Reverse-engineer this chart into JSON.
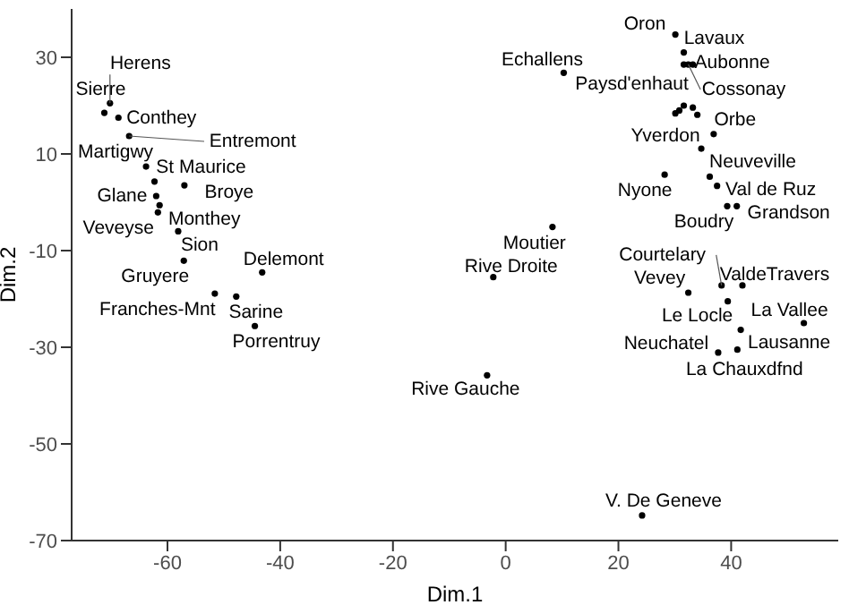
{
  "chart_data": {
    "type": "scatter",
    "xlabel": "Dim.1",
    "ylabel": "Dim.2",
    "xlim": [
      -77,
      59
    ],
    "xticks": [
      -60,
      -40,
      -20,
      0,
      20,
      40
    ],
    "ylim": [
      -70,
      40
    ],
    "yticks": [
      -70,
      -50,
      -30,
      -10,
      10,
      30
    ],
    "grid": false,
    "marker": "circle",
    "series": [
      {
        "color": "#000000",
        "x": [
          -70.2,
          -71.2,
          -68.7,
          -66.8,
          -63.8,
          -62.3,
          -57.0,
          -62.0,
          -61.4,
          -61.7,
          -58.1,
          -57.1,
          -43.2,
          -51.6,
          -47.8,
          -44.5,
          30.1,
          31.6,
          31.6,
          32.4,
          33.2,
          10.3,
          30.1,
          30.8,
          31.6,
          33.2,
          34.0,
          36.9,
          34.7,
          36.2,
          28.2,
          37.5,
          39.3,
          41.0,
          8.3,
          -2.2,
          38.3,
          42.0,
          32.4,
          39.4,
          52.9,
          41.7,
          37.7,
          41.1,
          -3.3,
          24.2
        ],
        "values": [
          20.5,
          18.5,
          17.5,
          13.7,
          7.4,
          4.3,
          3.5,
          1.3,
          -0.6,
          -2.1,
          -6.0,
          -12.1,
          -14.5,
          -18.9,
          -19.5,
          -25.6,
          34.7,
          31.0,
          28.5,
          28.5,
          28.5,
          26.8,
          18.4,
          19.0,
          20.0,
          19.6,
          18.1,
          14.1,
          11.1,
          5.3,
          5.7,
          3.4,
          -0.8,
          -0.8,
          -5.1,
          -15.5,
          -17.2,
          -17.2,
          -18.7,
          -20.5,
          -25.0,
          -26.4,
          -31.1,
          -30.5,
          -35.8,
          -64.8
        ]
      }
    ],
    "annotations": [
      {
        "text": "Herens",
        "x": -70.2,
        "y": 20.5
      },
      {
        "text": "Sierre",
        "x": -71.2,
        "y": 18.5
      },
      {
        "text": "Conthey",
        "x": -68.7,
        "y": 17.5
      },
      {
        "text": "Entremont",
        "x": -66.8,
        "y": 13.7
      },
      {
        "text": "Martigwy",
        "x": -63.8,
        "y": 7.4
      },
      {
        "text": "St Maurice",
        "x": -62.3,
        "y": 4.3
      },
      {
        "text": "Broye",
        "x": -57.0,
        "y": 3.5
      },
      {
        "text": "Glane",
        "x": -62.0,
        "y": 1.3
      },
      {
        "text": "Monthey",
        "x": -61.4,
        "y": -0.6
      },
      {
        "text": "Veveyse",
        "x": -61.7,
        "y": -2.1
      },
      {
        "text": "Sion",
        "x": -58.1,
        "y": -6.0
      },
      {
        "text": "Gruyere",
        "x": -57.1,
        "y": -12.1
      },
      {
        "text": "Delemont",
        "x": -43.2,
        "y": -14.5
      },
      {
        "text": "Franches-Mnt",
        "x": -51.6,
        "y": -18.9
      },
      {
        "text": "Sarine",
        "x": -47.8,
        "y": -19.5
      },
      {
        "text": "Porrentruy",
        "x": -44.5,
        "y": -25.6
      },
      {
        "text": "Oron",
        "x": 30.1,
        "y": 34.7
      },
      {
        "text": "Lavaux",
        "x": 31.6,
        "y": 31.0
      },
      {
        "text": "Paysd'enhaut",
        "x": 31.6,
        "y": 28.5
      },
      {
        "text": "Cossonay",
        "x": 32.4,
        "y": 28.5
      },
      {
        "text": "Aubonne",
        "x": 33.2,
        "y": 28.5
      },
      {
        "text": "Echallens",
        "x": 10.3,
        "y": 26.8
      },
      {
        "text": "Orbe",
        "x": 36.9,
        "y": 14.1
      },
      {
        "text": "Yverdon",
        "x": 34.7,
        "y": 11.1
      },
      {
        "text": "Neuveville",
        "x": 36.2,
        "y": 5.3
      },
      {
        "text": "Nyone",
        "x": 28.2,
        "y": 5.7
      },
      {
        "text": "Val de Ruz",
        "x": 37.5,
        "y": 3.4
      },
      {
        "text": "Boudry",
        "x": 39.3,
        "y": -0.8
      },
      {
        "text": "Grandson",
        "x": 41.0,
        "y": -0.8
      },
      {
        "text": "Moutier",
        "x": 8.3,
        "y": -5.1
      },
      {
        "text": "Rive Droite",
        "x": -2.2,
        "y": -15.5
      },
      {
        "text": "Courtelary",
        "x": 38.3,
        "y": -17.2
      },
      {
        "text": "ValdeTravers",
        "x": 42.0,
        "y": -17.2
      },
      {
        "text": "Vevey",
        "x": 32.4,
        "y": -18.7
      },
      {
        "text": "Le Locle",
        "x": 39.4,
        "y": -20.5
      },
      {
        "text": "La Vallee",
        "x": 52.9,
        "y": -25.0
      },
      {
        "text": "Lausanne",
        "x": 41.7,
        "y": -26.4
      },
      {
        "text": "Neuchatel",
        "x": 37.7,
        "y": -31.1
      },
      {
        "text": "La Chauxdfnd",
        "x": 41.1,
        "y": -30.5
      },
      {
        "text": "Rive Gauche",
        "x": -3.3,
        "y": -35.8
      },
      {
        "text": "V. De Geneve",
        "x": 24.2,
        "y": -64.8
      }
    ]
  }
}
